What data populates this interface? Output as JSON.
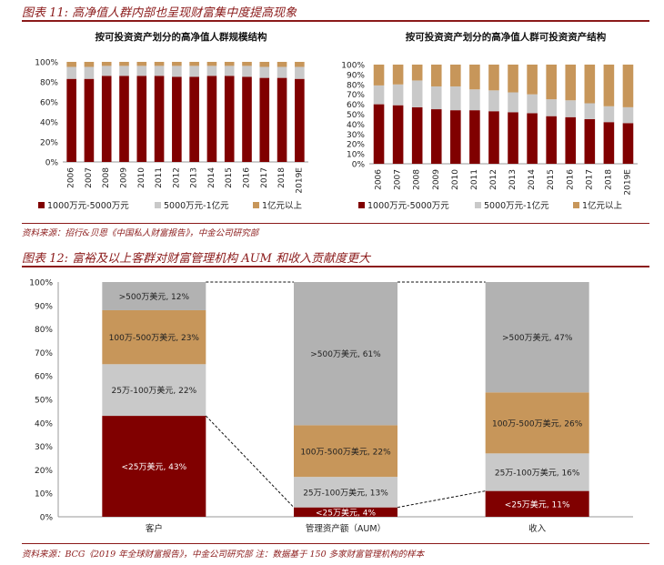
{
  "fig11": {
    "title": "图表 11: 高净值人群内部也呈现财富集中度提高现象",
    "source": "资料来源：招行&贝恩《中国私人财富报告》，中金公司研究部"
  },
  "fig12": {
    "title": "图表 12: 富裕及以上客群对财富管理机构 AUM 和收入贡献度更大",
    "source": "资料来源：BCG《2019 年全球财富报告》，中金公司研究部 注：数据基于 150 多家财富管理机构的样本"
  },
  "colors": {
    "dark": "#800000",
    "gray": "#c9c9c9",
    "tan": "#c7965a",
    "grayDark": "#b2b2b2",
    "tanDark": "#c3904f"
  },
  "chart_data": [
    {
      "type": "bar",
      "stacked": true,
      "title": "按可投资资产划分的高净值人群规模结构",
      "categories": [
        "2006",
        "2007",
        "2008",
        "2009",
        "2010",
        "2011",
        "2012",
        "2013",
        "2014",
        "2015",
        "2016",
        "2017",
        "2018",
        "2019E"
      ],
      "ylim": [
        0,
        100
      ],
      "yticks": [
        "0%",
        "20%",
        "40%",
        "60%",
        "80%",
        "100%"
      ],
      "legend_position": "bottom",
      "series": [
        {
          "name": "1000万元-5000万元",
          "color": "#800000",
          "values": [
            83,
            83,
            86,
            86,
            86,
            86,
            85,
            85,
            86,
            86,
            85,
            84,
            84,
            83
          ]
        },
        {
          "name": "5000万元-1亿元",
          "color": "#c9c9c9",
          "values": [
            12,
            12,
            10,
            10,
            10,
            10,
            11,
            11,
            10,
            10,
            11,
            11,
            11,
            12
          ]
        },
        {
          "name": "1亿元以上",
          "color": "#c7965a",
          "values": [
            5,
            5,
            4,
            4,
            4,
            4,
            4,
            4,
            4,
            4,
            4,
            5,
            5,
            5
          ]
        }
      ]
    },
    {
      "type": "bar",
      "stacked": true,
      "title": "按可投资资产划分的高净值人群可投资资产结构",
      "categories": [
        "2006",
        "2007",
        "2008",
        "2009",
        "2010",
        "2011",
        "2012",
        "2013",
        "2014",
        "2015",
        "2016",
        "2017",
        "2018",
        "2019E"
      ],
      "ylim": [
        0,
        100
      ],
      "yticks": [
        "0%",
        "10%",
        "20%",
        "30%",
        "40%",
        "50%",
        "60%",
        "70%",
        "80%",
        "90%",
        "100%"
      ],
      "legend_position": "bottom",
      "series": [
        {
          "name": "1000万元-5000万元",
          "color": "#800000",
          "values": [
            60,
            59,
            57,
            55,
            54,
            54,
            53,
            52,
            51,
            48,
            47,
            45,
            42,
            41
          ]
        },
        {
          "name": "5000万元-1亿元",
          "color": "#c9c9c9",
          "values": [
            19,
            21,
            27,
            23,
            24,
            21,
            21,
            20,
            19,
            17,
            17,
            16,
            16,
            16
          ]
        },
        {
          "name": "1亿元以上",
          "color": "#c7965a",
          "values": [
            21,
            20,
            16,
            22,
            22,
            25,
            26,
            28,
            30,
            35,
            36,
            39,
            42,
            43
          ]
        }
      ]
    },
    {
      "type": "bar",
      "stacked": true,
      "categories": [
        "客户",
        "管理资产额（AUM）",
        "收入"
      ],
      "ylim": [
        0,
        100
      ],
      "yticks": [
        "0%",
        "10%",
        "20%",
        "30%",
        "40%",
        "50%",
        "60%",
        "70%",
        "80%",
        "90%",
        "100%"
      ],
      "connectors": "dashed",
      "series": [
        {
          "name": "<25万美元",
          "color": "#800000",
          "values": [
            43,
            4,
            11
          ],
          "labels": [
            "<25万美元, 43%",
            "<25万美元, 4%",
            "<25万美元, 11%"
          ]
        },
        {
          "name": "25万-100万美元",
          "color": "#c9c9c9",
          "values": [
            22,
            13,
            16
          ],
          "labels": [
            "25万-100万美元, 22%",
            "25万-100万美元, 13%",
            "25万-100万美元, 16%"
          ]
        },
        {
          "name": "100万-500万美元",
          "color": "#c7965a",
          "values": [
            23,
            22,
            26
          ],
          "labels": [
            "100万-500万美元, 23%",
            "100万-500万美元, 22%",
            "100万-500万美元, 26%"
          ]
        },
        {
          "name": ">500万美元",
          "color": "#b2b2b2",
          "values": [
            12,
            61,
            47
          ],
          "labels": [
            ">500万美元, 12%",
            ">500万美元, 61%",
            ">500万美元, 47%"
          ]
        }
      ]
    }
  ]
}
